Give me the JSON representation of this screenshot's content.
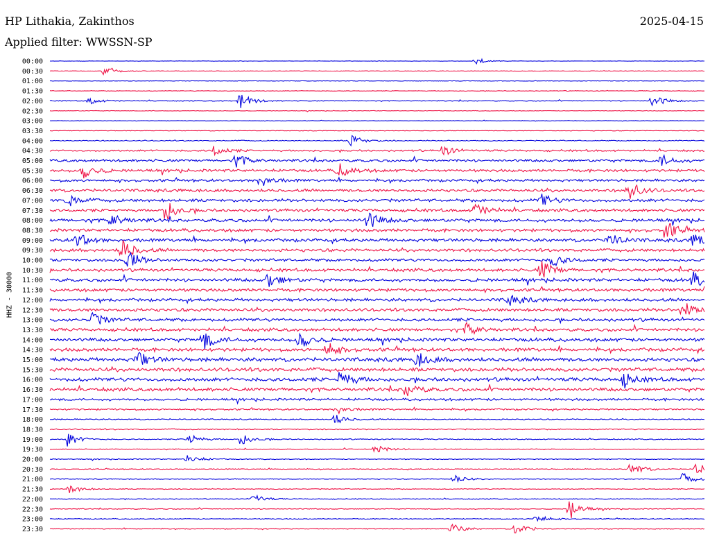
{
  "header": {
    "station": "HP Lithakia, Zakinthos",
    "date": "2025-04-15",
    "filter": "Applied filter: WWSSN-SP"
  },
  "chart_data": {
    "type": "line",
    "ylabel": "HHZ - 30000",
    "row_labels": [
      "00:00",
      "00:30",
      "01:00",
      "01:30",
      "02:00",
      "02:30",
      "03:00",
      "03:30",
      "04:00",
      "04:30",
      "05:00",
      "05:30",
      "06:00",
      "06:30",
      "07:00",
      "07:30",
      "08:00",
      "08:30",
      "09:00",
      "09:30",
      "10:00",
      "10:30",
      "11:00",
      "11:30",
      "12:00",
      "12:30",
      "13:00",
      "13:30",
      "14:00",
      "14:30",
      "15:00",
      "15:30",
      "16:00",
      "16:30",
      "17:00",
      "17:30",
      "18:00",
      "18:30",
      "19:00",
      "19:30",
      "20:00",
      "20:30",
      "21:00",
      "21:30",
      "22:00",
      "22:30",
      "23:00",
      "23:30"
    ],
    "colors": [
      "#0000dd",
      "#ee1144"
    ],
    "minutes_per_row": 30,
    "noise_amplitude_by_row": [
      0.25,
      0.3,
      0.25,
      0.35,
      0.5,
      0.3,
      0.3,
      0.35,
      0.6,
      1.1,
      1.5,
      1.6,
      1.5,
      1.7,
      1.8,
      1.7,
      1.9,
      1.8,
      1.9,
      1.8,
      1.7,
      1.8,
      1.9,
      1.8,
      1.8,
      1.9,
      1.9,
      1.8,
      2.0,
      2.0,
      2.2,
      2.2,
      2.2,
      2.0,
      1.4,
      1.0,
      0.7,
      0.7,
      0.6,
      0.5,
      0.5,
      0.5,
      0.5,
      0.5,
      0.5,
      0.5,
      0.5,
      0.5
    ],
    "events": [
      {
        "row": 0,
        "minute": 19.5,
        "amplitude": 5
      },
      {
        "row": 1,
        "minute": 2.5,
        "amplitude": 8
      },
      {
        "row": 4,
        "minute": 1.8,
        "amplitude": 5
      },
      {
        "row": 4,
        "minute": 8.7,
        "amplitude": 12
      },
      {
        "row": 4,
        "minute": 27.6,
        "amplitude": 11
      },
      {
        "row": 8,
        "minute": 13.8,
        "amplitude": 9
      },
      {
        "row": 9,
        "minute": 7.5,
        "amplitude": 8
      },
      {
        "row": 9,
        "minute": 18,
        "amplitude": 8
      },
      {
        "row": 10,
        "minute": 8.5,
        "amplitude": 10
      },
      {
        "row": 10,
        "minute": 28,
        "amplitude": 9
      },
      {
        "row": 11,
        "minute": 1.5,
        "amplitude": 13
      },
      {
        "row": 11,
        "minute": 13.2,
        "amplitude": 12
      },
      {
        "row": 12,
        "minute": 9.6,
        "amplitude": 10
      },
      {
        "row": 13,
        "minute": 26.5,
        "amplitude": 15
      },
      {
        "row": 14,
        "minute": 0.8,
        "amplitude": 9
      },
      {
        "row": 14,
        "minute": 22.5,
        "amplitude": 10
      },
      {
        "row": 15,
        "minute": 5.2,
        "amplitude": 18
      },
      {
        "row": 15,
        "minute": 19.5,
        "amplitude": 12
      },
      {
        "row": 16,
        "minute": 14.5,
        "amplitude": 16
      },
      {
        "row": 16,
        "minute": 2.8,
        "amplitude": 10
      },
      {
        "row": 17,
        "minute": 28.2,
        "amplitude": 13
      },
      {
        "row": 18,
        "minute": 1.2,
        "amplitude": 12
      },
      {
        "row": 18,
        "minute": 25.6,
        "amplitude": 12
      },
      {
        "row": 18,
        "minute": 29.5,
        "amplitude": 12
      },
      {
        "row": 19,
        "minute": 3.3,
        "amplitude": 16
      },
      {
        "row": 20,
        "minute": 3.5,
        "amplitude": 15
      },
      {
        "row": 20,
        "minute": 23,
        "amplitude": 11
      },
      {
        "row": 21,
        "minute": 22.5,
        "amplitude": 14
      },
      {
        "row": 22,
        "minute": 10,
        "amplitude": 12
      },
      {
        "row": 22,
        "minute": 29.4,
        "amplitude": 13
      },
      {
        "row": 24,
        "minute": 21,
        "amplitude": 10
      },
      {
        "row": 25,
        "minute": 29,
        "amplitude": 14
      },
      {
        "row": 26,
        "minute": 1.9,
        "amplitude": 11
      },
      {
        "row": 27,
        "minute": 19.1,
        "amplitude": 9
      },
      {
        "row": 28,
        "minute": 7,
        "amplitude": 16
      },
      {
        "row": 28,
        "minute": 11.4,
        "amplitude": 16
      },
      {
        "row": 29,
        "minute": 12.7,
        "amplitude": 12
      },
      {
        "row": 30,
        "minute": 4,
        "amplitude": 12
      },
      {
        "row": 30,
        "minute": 16.8,
        "amplitude": 11
      },
      {
        "row": 32,
        "minute": 13.3,
        "amplitude": 14
      },
      {
        "row": 32,
        "minute": 26.3,
        "amplitude": 11
      },
      {
        "row": 33,
        "minute": 16.3,
        "amplitude": 10
      },
      {
        "row": 35,
        "minute": 13.1,
        "amplitude": 7
      },
      {
        "row": 36,
        "minute": 13,
        "amplitude": 8
      },
      {
        "row": 38,
        "minute": 0.8,
        "amplitude": 10
      },
      {
        "row": 38,
        "minute": 6.3,
        "amplitude": 9
      },
      {
        "row": 38,
        "minute": 8.7,
        "amplitude": 9
      },
      {
        "row": 39,
        "minute": 14.9,
        "amplitude": 7
      },
      {
        "row": 40,
        "minute": 6.3,
        "amplitude": 7
      },
      {
        "row": 41,
        "minute": 26.6,
        "amplitude": 11
      },
      {
        "row": 41,
        "minute": 29.6,
        "amplitude": 10
      },
      {
        "row": 42,
        "minute": 29,
        "amplitude": 9
      },
      {
        "row": 42,
        "minute": 18.5,
        "amplitude": 6
      },
      {
        "row": 43,
        "minute": 0.9,
        "amplitude": 7
      },
      {
        "row": 44,
        "minute": 9.3,
        "amplitude": 7
      },
      {
        "row": 45,
        "minute": 23.8,
        "amplitude": 16
      },
      {
        "row": 46,
        "minute": 22.2,
        "amplitude": 9
      },
      {
        "row": 47,
        "minute": 21.3,
        "amplitude": 10
      },
      {
        "row": 47,
        "minute": 18.4,
        "amplitude": 8
      }
    ]
  }
}
